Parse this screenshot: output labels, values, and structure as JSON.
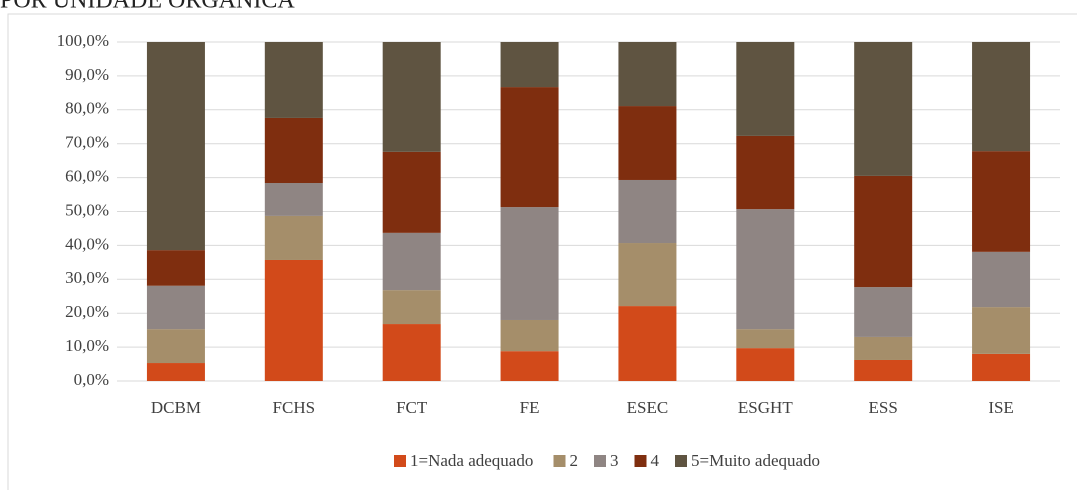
{
  "chart_data": {
    "type": "stacked_bar",
    "title": "POR UNIDADE ORGÂNICA",
    "categories": [
      "DCBM",
      "FCHS",
      "FCT",
      "FE",
      "ESEC",
      "ESGHT",
      "ESS",
      "ISE"
    ],
    "series": [
      {
        "name": "1=Nada adequado",
        "color": "#d24a1a",
        "values": [
          5.3,
          35.7,
          16.8,
          8.8,
          22.1,
          9.7,
          6.2,
          8.0
        ]
      },
      {
        "name": "2",
        "color": "#a58e6a",
        "values": [
          10.0,
          13.0,
          10.0,
          9.2,
          18.6,
          5.6,
          6.8,
          13.8
        ]
      },
      {
        "name": "3",
        "color": "#8f8583",
        "values": [
          12.8,
          9.7,
          16.9,
          33.3,
          18.6,
          35.4,
          14.7,
          16.3
        ]
      },
      {
        "name": "4",
        "color": "#7f2e0f",
        "values": [
          10.5,
          19.2,
          23.9,
          35.4,
          21.8,
          21.6,
          32.8,
          29.7
        ]
      },
      {
        "name": "5=Muito adequado",
        "color": "#5f5441",
        "values": [
          61.4,
          22.4,
          32.4,
          13.3,
          18.9,
          27.7,
          39.5,
          32.2
        ]
      }
    ],
    "ylim": [
      0,
      100
    ],
    "yticks": [
      {
        "value": 0,
        "label": "0,0%"
      },
      {
        "value": 10,
        "label": "10,0%"
      },
      {
        "value": 20,
        "label": "20,0%"
      },
      {
        "value": 30,
        "label": "30,0%"
      },
      {
        "value": 40,
        "label": "40,0%"
      },
      {
        "value": 50,
        "label": "50,0%"
      },
      {
        "value": 60,
        "label": "60,0%"
      },
      {
        "value": 70,
        "label": "70,0%"
      },
      {
        "value": 80,
        "label": "80,0%"
      },
      {
        "value": 90,
        "label": "90,0%"
      },
      {
        "value": 100,
        "label": "100,0%"
      }
    ],
    "grid": true,
    "legend": "bottom"
  }
}
